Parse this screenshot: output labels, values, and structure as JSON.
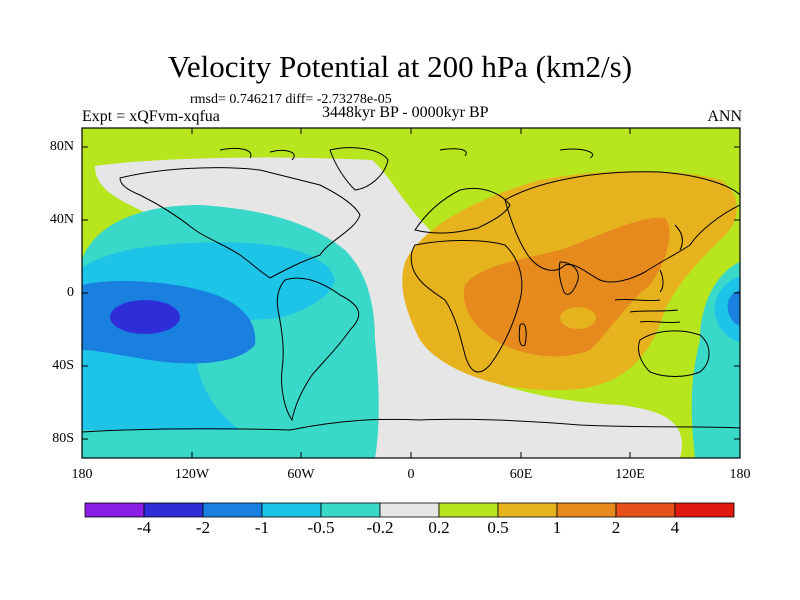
{
  "title": "Velocity Potential at 200 hPa (km2/s)",
  "stats": "rmsd= 0.746217 diff= -2.73278e-05",
  "experiment": "Expt = xQFvm-xqfua",
  "period": "3448kyr BP - 0000kyr BP",
  "season": "ANN",
  "lat_ticks": [
    "80N",
    "40N",
    "0",
    "40S",
    "80S"
  ],
  "lon_ticks": [
    "180",
    "120W",
    "60W",
    "0",
    "60E",
    "120E",
    "180"
  ],
  "colorbar": {
    "labels": [
      "-4",
      "-2",
      "-1",
      "-0.5",
      "-0.2",
      "0.2",
      "0.5",
      "1",
      "2",
      "4"
    ],
    "colors": [
      "#8a1ee6",
      "#2d2ed8",
      "#1a80e0",
      "#1ec3e8",
      "#3ad8c8",
      "#e6e6e6",
      "#b8e61e",
      "#e6b21e",
      "#e68a1e",
      "#e6501a",
      "#e01a10"
    ]
  },
  "chart_data": {
    "type": "heatmap",
    "title": "Velocity Potential at 200 hPa (km2/s)",
    "variable": "velocity potential anomaly",
    "units": "km2/s",
    "levels": [
      -4,
      -2,
      -1,
      -0.5,
      -0.2,
      0.2,
      0.5,
      1,
      2,
      4
    ],
    "xlim": [
      -180,
      180
    ],
    "ylim": [
      -90,
      90
    ],
    "features": [
      {
        "name": "Pacific negative center",
        "lon": -140,
        "lat": -12,
        "value": -2.5
      },
      {
        "name": "Africa-Indian Ocean positive center",
        "lon": 65,
        "lat": -5,
        "value": 1.5
      },
      {
        "name": "West Pacific / Asia positive maximum",
        "lon": 115,
        "lat": 25,
        "value": 1.2
      }
    ]
  }
}
